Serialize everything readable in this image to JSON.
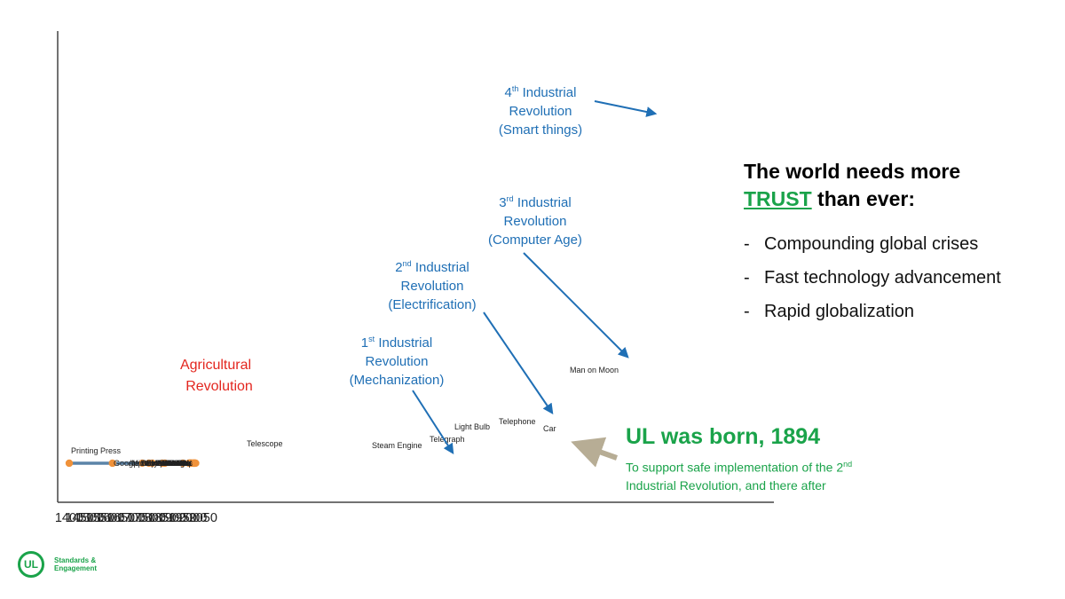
{
  "chart_data": {
    "type": "line",
    "title": "",
    "xlabel": "",
    "ylabel": "",
    "x_ticks": [
      "1400",
      "1450",
      "1500",
      "1550",
      "1600",
      "1650",
      "1700",
      "1750",
      "1800",
      "1850",
      "1900",
      "1950",
      "2000",
      "2050"
    ],
    "xlim": [
      1395,
      2060
    ],
    "series": [
      {
        "name": "",
        "curve": "exponential technology growth",
        "color": "#5b84a8"
      }
    ],
    "milestones": [
      {
        "label": "Printing Press",
        "year": 1400
      },
      {
        "label": "Telescope",
        "year": 1610
      },
      {
        "label": "Steam Engine",
        "year": 1755
      },
      {
        "label": "Telegraph",
        "year": 1787
      },
      {
        "label": "Light Bulb",
        "year": 1804
      },
      {
        "label": "Telephone",
        "year": 1852
      },
      {
        "label": "Car",
        "year": 1865
      },
      {
        "label": "Man on Moon",
        "year": 1952
      },
      {
        "label": "Microprocessor",
        "year": 1981
      },
      {
        "label": "Wordpressor",
        "year": 1983
      },
      {
        "label": "MS-DOS",
        "year": 1985
      },
      {
        "label": "Apple Macintosh",
        "year": 1987
      },
      {
        "label": "Windows",
        "year": 1989
      },
      {
        "label": "WWW",
        "year": 1991
      },
      {
        "label": "Cell Phones",
        "year": 1993
      },
      {
        "label": "DVDs",
        "year": 1997
      },
      {
        "label": "Hybrid Cars",
        "year": 2001
      },
      {
        "label": "Google",
        "year": 2003
      },
      {
        "label": "Youtube",
        "year": 2005
      },
      {
        "label": "Facebook",
        "year": 2006
      },
      {
        "label": "iPad",
        "year": 2008
      },
      {
        "label": "Google Driverless Car",
        "year": 2010
      },
      {
        "label": "3D Movies",
        "year": 2012
      },
      {
        "label": "First 3D Chip",
        "year": 2014
      }
    ],
    "annotations": {
      "agricultural": [
        "Agricultural",
        "Revolution"
      ],
      "ir1": {
        "ordinal": "1",
        "sup": "st",
        "line1": "Industrial",
        "line2": "Revolution",
        "line3": "(Mechanization)"
      },
      "ir2": {
        "ordinal": "2",
        "sup": "nd",
        "line1": "Industrial",
        "line2": "Revolution",
        "line3": "(Electrification)"
      },
      "ir3": {
        "ordinal": "3",
        "sup": "rd",
        "line1": "Industrial",
        "line2": "Revolution",
        "line3": "(Computer Age)"
      },
      "ir4": {
        "ordinal": "4",
        "sup": "th",
        "line1": "Industrial",
        "line2": "Revolution",
        "line3": "(Smart things)"
      }
    },
    "colors": {
      "curve": "#5b84a8",
      "dot": "#f0923a",
      "annotation": "#1f6fb5",
      "agricultural": "#e3261f",
      "arrow_ul": "#b7ad95"
    }
  },
  "panel": {
    "title_line1": "The world needs more",
    "trust_word": "TRUST",
    "title_rest": " than ever:",
    "bullets": [
      "Compounding global crises",
      "Fast technology advancement",
      "Rapid globalization"
    ]
  },
  "ul_block": {
    "headline": "UL was born, 1894",
    "sub_line1": "To support safe implementation of the 2",
    "sub_sup": "nd",
    "sub_line2": "Industrial Revolution, and there after"
  },
  "logo": {
    "mark": "UL",
    "line1": "Standards &",
    "line2": "Engagement"
  },
  "colors": {
    "brand_green": "#1aa34a"
  }
}
